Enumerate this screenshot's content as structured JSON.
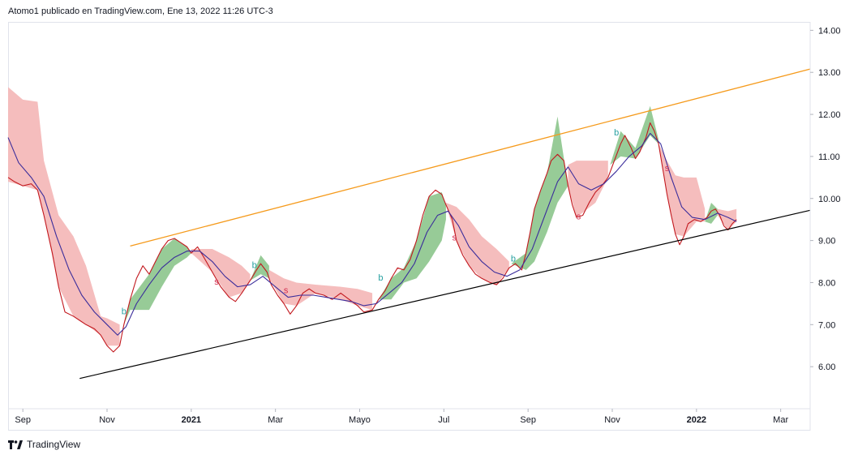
{
  "header": {
    "caption": "Atomo1 publicado en TradingView.com, Ene 13, 2022 11:26 UTC-3"
  },
  "brand": {
    "name": "TradingView",
    "logo_icon": "tradingview-logo-icon"
  },
  "colors": {
    "price": "#c2181e",
    "ma": "#3b2d9b",
    "cloud_bear": "#f4b6b6",
    "cloud_bull": "#8cc58c",
    "resistance": "#f59a1b",
    "support": "#000000",
    "signal_buy": "#26a0a0",
    "signal_sell": "#d32f50"
  },
  "chart_data": {
    "type": "line",
    "title": "",
    "xlabel": "",
    "ylabel": "",
    "x_ticks": [
      {
        "label": "Sep",
        "t": 0.0
      },
      {
        "label": "Nov",
        "t": 2.0
      },
      {
        "label": "2021",
        "t": 4.0,
        "bold": true
      },
      {
        "label": "Mar",
        "t": 6.0
      },
      {
        "label": "Mayo",
        "t": 8.0
      },
      {
        "label": "Jul",
        "t": 10.0
      },
      {
        "label": "Sep",
        "t": 12.0
      },
      {
        "label": "Nov",
        "t": 14.0
      },
      {
        "label": "2022",
        "t": 16.0,
        "bold": true
      },
      {
        "label": "Mar",
        "t": 18.0
      }
    ],
    "y_ticks": [
      "6.00",
      "7.00",
      "8.00",
      "9.00",
      "10.00",
      "11.00",
      "12.00",
      "13.00",
      "14.00"
    ],
    "ylim": [
      5.0,
      14.2
    ],
    "xlim": [
      -0.35,
      18.7
    ],
    "grid": false,
    "series": [
      {
        "role": "price",
        "points": [
          [
            -0.35,
            10.5
          ],
          [
            -0.2,
            10.4
          ],
          [
            0.0,
            10.3
          ],
          [
            0.2,
            10.35
          ],
          [
            0.35,
            10.2
          ],
          [
            0.5,
            9.6
          ],
          [
            0.7,
            8.7
          ],
          [
            0.85,
            7.9
          ],
          [
            1.0,
            7.3
          ],
          [
            1.2,
            7.2
          ],
          [
            1.35,
            7.1
          ],
          [
            1.5,
            7.0
          ],
          [
            1.7,
            6.9
          ],
          [
            1.85,
            6.75
          ],
          [
            2.0,
            6.5
          ],
          [
            2.15,
            6.35
          ],
          [
            2.3,
            6.5
          ],
          [
            2.4,
            7.0
          ],
          [
            2.55,
            7.6
          ],
          [
            2.7,
            8.1
          ],
          [
            2.85,
            8.4
          ],
          [
            3.0,
            8.2
          ],
          [
            3.15,
            8.5
          ],
          [
            3.3,
            8.8
          ],
          [
            3.45,
            9.0
          ],
          [
            3.6,
            9.05
          ],
          [
            3.75,
            8.95
          ],
          [
            3.9,
            8.85
          ],
          [
            4.0,
            8.7
          ],
          [
            4.15,
            8.85
          ],
          [
            4.3,
            8.6
          ],
          [
            4.5,
            8.25
          ],
          [
            4.7,
            7.9
          ],
          [
            4.9,
            7.65
          ],
          [
            5.05,
            7.55
          ],
          [
            5.2,
            7.75
          ],
          [
            5.4,
            8.05
          ],
          [
            5.55,
            8.3
          ],
          [
            5.65,
            8.45
          ],
          [
            5.8,
            8.25
          ],
          [
            5.9,
            7.95
          ],
          [
            6.05,
            7.7
          ],
          [
            6.2,
            7.5
          ],
          [
            6.35,
            7.25
          ],
          [
            6.5,
            7.45
          ],
          [
            6.65,
            7.75
          ],
          [
            6.8,
            7.85
          ],
          [
            6.95,
            7.75
          ],
          [
            7.15,
            7.7
          ],
          [
            7.35,
            7.6
          ],
          [
            7.55,
            7.75
          ],
          [
            7.75,
            7.6
          ],
          [
            7.95,
            7.45
          ],
          [
            8.1,
            7.3
          ],
          [
            8.3,
            7.35
          ],
          [
            8.45,
            7.6
          ],
          [
            8.6,
            7.8
          ],
          [
            8.75,
            8.1
          ],
          [
            8.9,
            8.35
          ],
          [
            9.05,
            8.3
          ],
          [
            9.2,
            8.55
          ],
          [
            9.35,
            9.0
          ],
          [
            9.5,
            9.6
          ],
          [
            9.65,
            10.05
          ],
          [
            9.8,
            10.2
          ],
          [
            9.95,
            10.1
          ],
          [
            10.05,
            9.85
          ],
          [
            10.2,
            9.5
          ],
          [
            10.3,
            9.0
          ],
          [
            10.45,
            8.65
          ],
          [
            10.6,
            8.4
          ],
          [
            10.75,
            8.2
          ],
          [
            10.9,
            8.1
          ],
          [
            11.1,
            8.0
          ],
          [
            11.25,
            7.95
          ],
          [
            11.4,
            8.1
          ],
          [
            11.55,
            8.35
          ],
          [
            11.7,
            8.45
          ],
          [
            11.85,
            8.3
          ],
          [
            11.95,
            8.7
          ],
          [
            12.05,
            9.2
          ],
          [
            12.15,
            9.75
          ],
          [
            12.3,
            10.2
          ],
          [
            12.45,
            10.6
          ],
          [
            12.55,
            10.9
          ],
          [
            12.7,
            11.05
          ],
          [
            12.85,
            10.9
          ],
          [
            12.95,
            10.3
          ],
          [
            13.05,
            9.85
          ],
          [
            13.15,
            9.55
          ],
          [
            13.3,
            9.6
          ],
          [
            13.45,
            9.9
          ],
          [
            13.6,
            10.15
          ],
          [
            13.75,
            10.3
          ],
          [
            13.9,
            10.5
          ],
          [
            14.05,
            10.9
          ],
          [
            14.2,
            11.3
          ],
          [
            14.3,
            11.5
          ],
          [
            14.45,
            11.2
          ],
          [
            14.55,
            10.95
          ],
          [
            14.65,
            11.1
          ],
          [
            14.8,
            11.45
          ],
          [
            14.9,
            11.8
          ],
          [
            15.0,
            11.6
          ],
          [
            15.1,
            11.3
          ],
          [
            15.2,
            10.7
          ],
          [
            15.3,
            10.1
          ],
          [
            15.4,
            9.6
          ],
          [
            15.5,
            9.15
          ],
          [
            15.6,
            8.9
          ],
          [
            15.7,
            9.1
          ],
          [
            15.8,
            9.4
          ],
          [
            15.95,
            9.5
          ],
          [
            16.1,
            9.45
          ],
          [
            16.25,
            9.55
          ],
          [
            16.35,
            9.7
          ],
          [
            16.45,
            9.75
          ],
          [
            16.55,
            9.6
          ],
          [
            16.65,
            9.35
          ],
          [
            16.75,
            9.25
          ],
          [
            16.85,
            9.4
          ],
          [
            16.95,
            9.5
          ]
        ]
      },
      {
        "role": "moving_average",
        "points": [
          [
            -0.35,
            11.45
          ],
          [
            -0.1,
            10.85
          ],
          [
            0.2,
            10.5
          ],
          [
            0.5,
            10.05
          ],
          [
            0.8,
            9.1
          ],
          [
            1.1,
            8.3
          ],
          [
            1.4,
            7.7
          ],
          [
            1.7,
            7.3
          ],
          [
            2.0,
            7.0
          ],
          [
            2.25,
            6.75
          ],
          [
            2.45,
            6.95
          ],
          [
            2.7,
            7.5
          ],
          [
            3.0,
            7.95
          ],
          [
            3.3,
            8.35
          ],
          [
            3.6,
            8.6
          ],
          [
            3.9,
            8.75
          ],
          [
            4.2,
            8.75
          ],
          [
            4.5,
            8.5
          ],
          [
            4.8,
            8.15
          ],
          [
            5.1,
            7.9
          ],
          [
            5.4,
            7.95
          ],
          [
            5.7,
            8.15
          ],
          [
            6.0,
            7.9
          ],
          [
            6.3,
            7.65
          ],
          [
            6.6,
            7.7
          ],
          [
            6.9,
            7.7
          ],
          [
            7.2,
            7.65
          ],
          [
            7.5,
            7.6
          ],
          [
            7.8,
            7.55
          ],
          [
            8.1,
            7.45
          ],
          [
            8.4,
            7.5
          ],
          [
            8.7,
            7.75
          ],
          [
            9.0,
            8.0
          ],
          [
            9.3,
            8.45
          ],
          [
            9.6,
            9.2
          ],
          [
            9.85,
            9.6
          ],
          [
            10.1,
            9.7
          ],
          [
            10.35,
            9.35
          ],
          [
            10.6,
            8.85
          ],
          [
            10.9,
            8.5
          ],
          [
            11.2,
            8.25
          ],
          [
            11.5,
            8.15
          ],
          [
            11.8,
            8.3
          ],
          [
            12.1,
            8.8
          ],
          [
            12.4,
            9.6
          ],
          [
            12.7,
            10.4
          ],
          [
            12.95,
            10.75
          ],
          [
            13.2,
            10.35
          ],
          [
            13.5,
            10.2
          ],
          [
            13.8,
            10.35
          ],
          [
            14.1,
            10.65
          ],
          [
            14.4,
            11.0
          ],
          [
            14.7,
            11.25
          ],
          [
            14.9,
            11.55
          ],
          [
            15.15,
            11.3
          ],
          [
            15.4,
            10.5
          ],
          [
            15.65,
            9.8
          ],
          [
            15.9,
            9.55
          ],
          [
            16.2,
            9.5
          ],
          [
            16.5,
            9.65
          ],
          [
            16.75,
            9.55
          ],
          [
            16.95,
            9.45
          ]
        ]
      },
      {
        "role": "resistance_trend",
        "points": [
          [
            2.55,
            8.87
          ],
          [
            18.7,
            13.08
          ]
        ]
      },
      {
        "role": "support_trend",
        "points": [
          [
            1.35,
            5.72
          ],
          [
            18.7,
            9.72
          ]
        ]
      }
    ],
    "cloud": [
      [
        -0.35,
        12.65,
        10.4,
        "bear"
      ],
      [
        0.0,
        12.35,
        10.3,
        "bear"
      ],
      [
        0.35,
        12.3,
        10.2,
        "bear"
      ],
      [
        0.5,
        10.9,
        9.6,
        "bear"
      ],
      [
        0.85,
        9.6,
        7.9,
        "bear"
      ],
      [
        1.2,
        9.1,
        7.2,
        "bear"
      ],
      [
        1.5,
        8.4,
        7.0,
        "bear"
      ],
      [
        1.85,
        7.2,
        6.75,
        "bear"
      ],
      [
        2.0,
        7.15,
        6.5,
        "bear"
      ],
      [
        2.3,
        7.0,
        6.5,
        "bear"
      ],
      [
        2.4,
        7.0,
        7.0,
        "bull"
      ],
      [
        2.55,
        7.6,
        7.35,
        "bull"
      ],
      [
        3.0,
        8.2,
        7.35,
        "bull"
      ],
      [
        3.3,
        8.8,
        7.9,
        "bull"
      ],
      [
        3.6,
        9.05,
        8.4,
        "bull"
      ],
      [
        3.9,
        8.85,
        8.6,
        "bull"
      ],
      [
        4.0,
        8.7,
        8.7,
        "bull"
      ],
      [
        4.0,
        8.8,
        8.7,
        "bear"
      ],
      [
        4.5,
        8.8,
        8.25,
        "bear"
      ],
      [
        4.9,
        8.6,
        7.65,
        "bear"
      ],
      [
        5.2,
        8.4,
        7.75,
        "bear"
      ],
      [
        5.4,
        8.2,
        8.05,
        "bear"
      ],
      [
        5.4,
        8.05,
        8.05,
        "bull"
      ],
      [
        5.65,
        8.65,
        8.2,
        "bull"
      ],
      [
        5.85,
        8.4,
        8.1,
        "bull"
      ],
      [
        5.85,
        8.3,
        8.1,
        "bear"
      ],
      [
        6.2,
        8.1,
        7.5,
        "bear"
      ],
      [
        6.5,
        8.0,
        7.45,
        "bear"
      ],
      [
        6.95,
        7.95,
        7.75,
        "bear"
      ],
      [
        7.55,
        7.9,
        7.6,
        "bear"
      ],
      [
        7.95,
        7.85,
        7.45,
        "bear"
      ],
      [
        8.3,
        7.75,
        7.35,
        "bear"
      ],
      [
        8.45,
        7.6,
        7.6,
        "bull"
      ],
      [
        8.75,
        8.1,
        7.6,
        "bull"
      ],
      [
        9.05,
        8.35,
        8.0,
        "bull"
      ],
      [
        9.35,
        9.0,
        8.1,
        "bull"
      ],
      [
        9.65,
        10.05,
        8.5,
        "bull"
      ],
      [
        9.95,
        10.15,
        9.0,
        "bull"
      ],
      [
        10.05,
        9.85,
        9.5,
        "bull"
      ],
      [
        10.05,
        9.9,
        9.85,
        "bear"
      ],
      [
        10.3,
        9.8,
        9.0,
        "bear"
      ],
      [
        10.6,
        9.5,
        8.4,
        "bear"
      ],
      [
        10.9,
        9.1,
        8.1,
        "bear"
      ],
      [
        11.25,
        8.8,
        7.95,
        "bear"
      ],
      [
        11.55,
        8.5,
        8.35,
        "bear"
      ],
      [
        11.6,
        8.45,
        8.45,
        "bull"
      ],
      [
        11.95,
        8.7,
        8.3,
        "bull"
      ],
      [
        12.15,
        9.75,
        8.5,
        "bull"
      ],
      [
        12.45,
        10.6,
        9.2,
        "bull"
      ],
      [
        12.7,
        11.95,
        9.9,
        "bull"
      ],
      [
        12.95,
        10.3,
        10.3,
        "bull"
      ],
      [
        12.95,
        10.8,
        10.3,
        "bear"
      ],
      [
        13.15,
        10.9,
        9.55,
        "bear"
      ],
      [
        13.6,
        10.9,
        9.9,
        "bear"
      ],
      [
        13.9,
        10.9,
        10.5,
        "bear"
      ],
      [
        13.95,
        10.8,
        10.8,
        "bull"
      ],
      [
        14.2,
        11.6,
        11.0,
        "bull"
      ],
      [
        14.55,
        11.2,
        10.95,
        "bull"
      ],
      [
        14.9,
        12.2,
        11.5,
        "bull"
      ],
      [
        15.1,
        11.4,
        11.3,
        "bull"
      ],
      [
        15.1,
        11.3,
        11.3,
        "bear"
      ],
      [
        15.3,
        10.9,
        10.1,
        "bear"
      ],
      [
        15.5,
        10.55,
        9.15,
        "bear"
      ],
      [
        15.7,
        10.5,
        9.1,
        "bear"
      ],
      [
        16.0,
        10.5,
        9.45,
        "bear"
      ],
      [
        16.2,
        9.75,
        9.45,
        "bear"
      ],
      [
        16.2,
        9.45,
        9.45,
        "bull"
      ],
      [
        16.35,
        9.9,
        9.4,
        "bull"
      ],
      [
        16.5,
        9.75,
        9.6,
        "bull"
      ],
      [
        16.5,
        9.75,
        9.6,
        "bear"
      ],
      [
        16.75,
        9.7,
        9.25,
        "bear"
      ],
      [
        16.95,
        9.75,
        9.45,
        "bear"
      ]
    ],
    "signals": [
      {
        "label": "b",
        "t": 2.4,
        "y": 7.25,
        "kind": "buy"
      },
      {
        "label": "s",
        "t": 4.6,
        "y": 7.95,
        "kind": "sell"
      },
      {
        "label": "b",
        "t": 5.5,
        "y": 8.35,
        "kind": "buy"
      },
      {
        "label": "s",
        "t": 6.25,
        "y": 7.75,
        "kind": "sell"
      },
      {
        "label": "b",
        "t": 8.5,
        "y": 8.05,
        "kind": "buy"
      },
      {
        "label": "s",
        "t": 10.25,
        "y": 9.0,
        "kind": "sell"
      },
      {
        "label": "b",
        "t": 11.65,
        "y": 8.5,
        "kind": "buy"
      },
      {
        "label": "s",
        "t": 13.2,
        "y": 9.5,
        "kind": "sell"
      },
      {
        "label": "b",
        "t": 14.1,
        "y": 11.5,
        "kind": "buy"
      },
      {
        "label": "s",
        "t": 15.3,
        "y": 10.65,
        "kind": "sell"
      }
    ]
  }
}
